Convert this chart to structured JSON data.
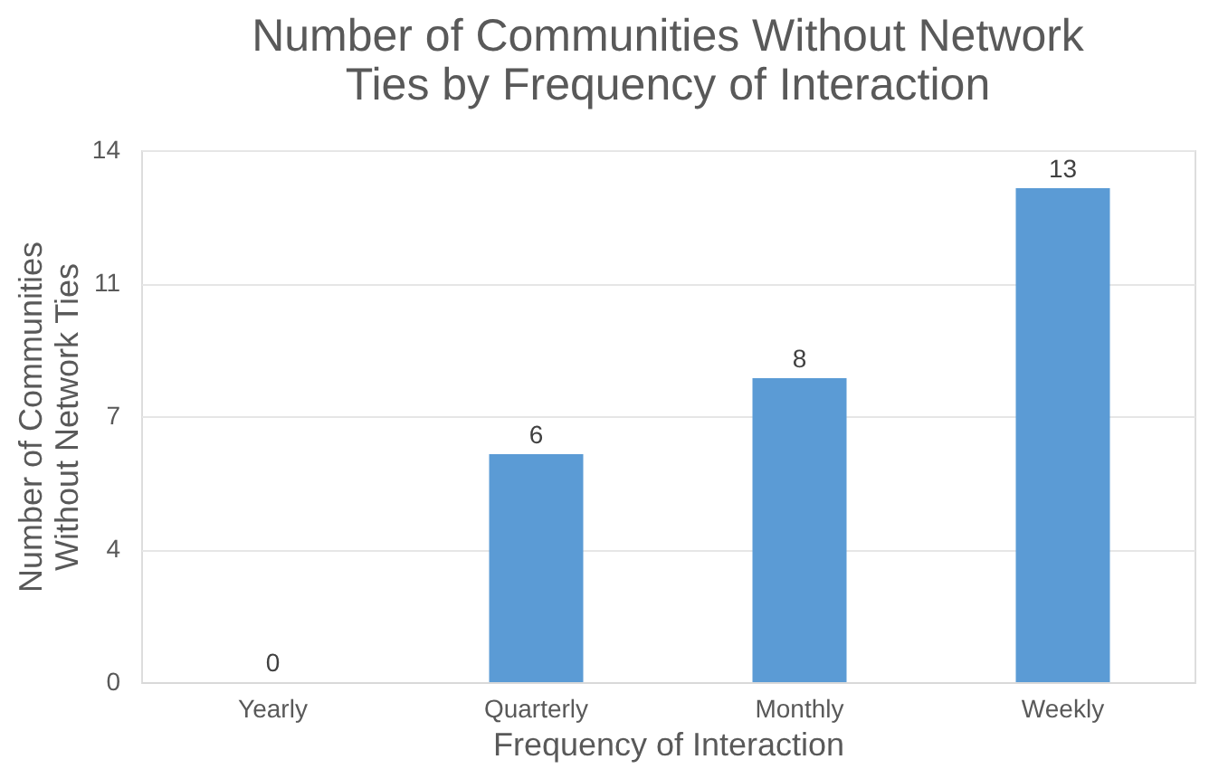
{
  "chart_data": {
    "type": "bar",
    "title": "Number of Communities Without Network Ties by Frequency of Interaction",
    "xlabel": "Frequency of Interaction",
    "ylabel": "Number of Communities Without Network Ties",
    "categories": [
      "Yearly",
      "Quarterly",
      "Monthly",
      "Weekly"
    ],
    "values": [
      0,
      6,
      8,
      13
    ],
    "color": "#5b9bd5",
    "ylim": [
      0,
      14
    ],
    "yticks": [
      0,
      {
        "value": 3.5,
        "label": "4"
      },
      7,
      {
        "value": 10.5,
        "label": "11"
      },
      14
    ],
    "grid": "y",
    "data_labels": true
  }
}
